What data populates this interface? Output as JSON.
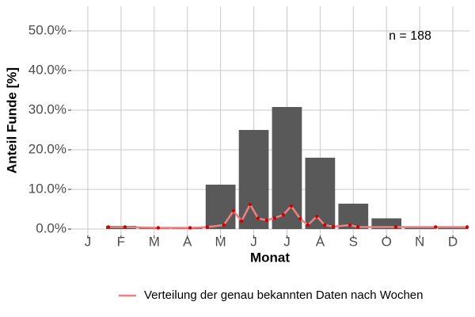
{
  "chart_data": {
    "type": "bar",
    "xlabel": "Monat",
    "ylabel": "Anteil Funde [%]",
    "annotation": "n = 188",
    "xlim": [
      0.5,
      12.5
    ],
    "xticks": [
      {
        "value": 1,
        "label": "J"
      },
      {
        "value": 2,
        "label": "F"
      },
      {
        "value": 3,
        "label": "M"
      },
      {
        "value": 4,
        "label": "A"
      },
      {
        "value": 5,
        "label": "M"
      },
      {
        "value": 6,
        "label": "J"
      },
      {
        "value": 7,
        "label": "J"
      },
      {
        "value": 8,
        "label": "A"
      },
      {
        "value": 9,
        "label": "S"
      },
      {
        "value": 10,
        "label": "O"
      },
      {
        "value": 11,
        "label": "N"
      },
      {
        "value": 12,
        "label": "D"
      }
    ],
    "ylim": [
      -1.6,
      56.2
    ],
    "yticks": [
      {
        "value": 0,
        "label": "0.0%"
      },
      {
        "value": 10,
        "label": "10.0%"
      },
      {
        "value": 20,
        "label": "20.0%"
      },
      {
        "value": 30,
        "label": "30.0%"
      },
      {
        "value": 40,
        "label": "40.0%"
      },
      {
        "value": 50,
        "label": "50.0%"
      }
    ],
    "grid": true,
    "legend": "bottom",
    "series": [
      {
        "type": "bar",
        "color": "#595959",
        "values": [
          0,
          0.8,
          0.4,
          0.4,
          11.2,
          25,
          30.8,
          18,
          6.4,
          2.7,
          0.4,
          0.4
        ]
      },
      {
        "type": "line",
        "name": "Verteilung der genau bekannten Daten nach Wochen",
        "color": "#f08080",
        "marker_color": "#d00000",
        "x": [
          1.62,
          2.12,
          3.12,
          4.08,
          4.6,
          5.1,
          5.39,
          5.63,
          5.89,
          6.13,
          6.39,
          6.63,
          6.89,
          7.13,
          7.4,
          7.63,
          7.9,
          8.14,
          8.4,
          8.9,
          9.14,
          10.28,
          11.48,
          12.43
        ],
        "values": [
          0.5,
          0.5,
          0.3,
          0.3,
          0.5,
          1.0,
          4.6,
          2.0,
          6.2,
          2.7,
          2.2,
          2.8,
          3.6,
          5.8,
          2.6,
          1.0,
          3.2,
          1.0,
          0.6,
          1.0,
          0.5,
          0.5,
          0.5,
          0.5
        ]
      }
    ]
  }
}
